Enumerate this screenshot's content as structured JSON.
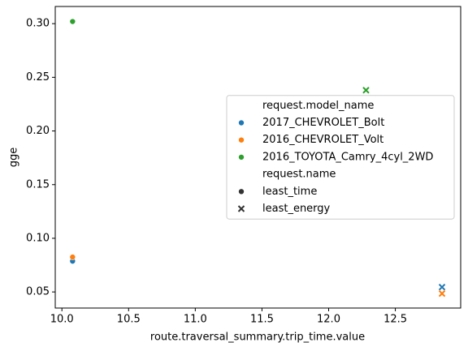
{
  "chart_data": {
    "type": "scatter",
    "xlabel": "route.traversal_summary.trip_time.value",
    "ylabel": "gge",
    "xlim": [
      9.95,
      12.99
    ],
    "ylim": [
      0.035,
      0.316
    ],
    "xticks": [
      {
        "value": 10.0,
        "label": "10.0"
      },
      10.5,
      {
        "value": 11.0,
        "label": "11.0"
      },
      11.5,
      {
        "value": 12.0,
        "label": "12.0"
      },
      12.5
    ],
    "yticks": [
      0.05,
      {
        "value": 0.1,
        "label": "0.10"
      },
      0.15,
      {
        "value": 0.2,
        "label": "0.20"
      },
      0.25,
      {
        "value": 0.3,
        "label": "0.30"
      }
    ],
    "hue_title": "request.model_name",
    "style_title": "request.name",
    "styles": [
      {
        "name": "least_time",
        "marker": "circle"
      },
      {
        "name": "least_energy",
        "marker": "x"
      }
    ],
    "series": [
      {
        "name": "2017_CHEVROLET_Bolt",
        "color": "#1f77b4",
        "x": [
          10.08,
          12.85
        ],
        "values": [
          0.0787,
          0.0545
        ]
      },
      {
        "name": "2016_CHEVROLET_Volt",
        "color": "#ff7f0e",
        "x": [
          10.08,
          12.85
        ],
        "values": [
          0.0825,
          0.0485
        ]
      },
      {
        "name": "2016_TOYOTA_Camry_4cyl_2WD",
        "color": "#2ca02c",
        "x": [
          10.08,
          12.28
        ],
        "values": [
          0.302,
          0.238
        ]
      }
    ],
    "legend": "center right"
  }
}
